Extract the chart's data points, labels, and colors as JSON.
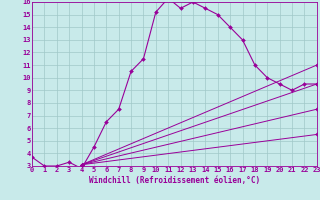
{
  "xlabel": "Windchill (Refroidissement éolien,°C)",
  "bg_color": "#c8eaea",
  "line_color": "#990099",
  "grid_color": "#a0c8c8",
  "xlim": [
    0,
    23
  ],
  "ylim": [
    3,
    16
  ],
  "xticks": [
    0,
    1,
    2,
    3,
    4,
    5,
    6,
    7,
    8,
    9,
    10,
    11,
    12,
    13,
    14,
    15,
    16,
    17,
    18,
    19,
    20,
    21,
    22,
    23
  ],
  "yticks": [
    3,
    4,
    5,
    6,
    7,
    8,
    9,
    10,
    11,
    12,
    13,
    14,
    15,
    16
  ],
  "main_curve_x": [
    0,
    1,
    2,
    3,
    4,
    5,
    6,
    7,
    8,
    9,
    10,
    11,
    12,
    13,
    14,
    15,
    16,
    17,
    18,
    19,
    20,
    21,
    22,
    23
  ],
  "main_curve_y": [
    3.7,
    3.0,
    3.0,
    3.3,
    2.8,
    4.5,
    6.5,
    7.5,
    10.5,
    11.5,
    15.2,
    16.3,
    15.5,
    16.0,
    15.5,
    15.0,
    14.0,
    13.0,
    11.0,
    10.0,
    9.5,
    9.0,
    9.5,
    9.5
  ],
  "fan_lines": [
    {
      "x": [
        4,
        23
      ],
      "y": [
        3.1,
        11.0
      ]
    },
    {
      "x": [
        4,
        23
      ],
      "y": [
        3.1,
        9.5
      ]
    },
    {
      "x": [
        4,
        23
      ],
      "y": [
        3.1,
        7.5
      ]
    },
    {
      "x": [
        4,
        23
      ],
      "y": [
        3.1,
        5.5
      ]
    }
  ],
  "xlabel_fontsize": 5.5,
  "tick_fontsize": 5.0
}
